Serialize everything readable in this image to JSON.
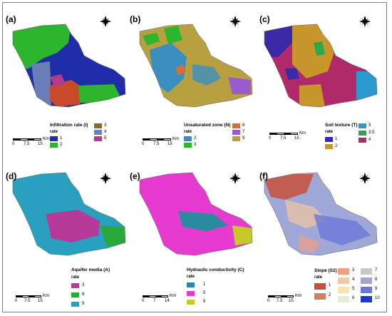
{
  "panels": {
    "a": {
      "label": "(a)",
      "legend_title": "Infiltration rate (I)",
      "legend_sub": "rate",
      "classes": [
        {
          "value": "1",
          "color": "#1f2ea8"
        },
        {
          "value": "2",
          "color": "#2db52d"
        },
        {
          "value": "3",
          "color": "#8a6a2a"
        },
        {
          "value": "4",
          "color": "#6a7fb8"
        },
        {
          "value": "5",
          "color": "#b53a8a"
        }
      ],
      "scale": {
        "unit": "Km",
        "ticks": [
          "0",
          "7.5",
          "15"
        ]
      }
    },
    "b": {
      "label": "(b)",
      "legend_title": "Unsaturated zone (N)",
      "legend_sub": "rate",
      "classes": [
        {
          "value": "2",
          "color": "#3a8fc0"
        },
        {
          "value": "3",
          "color": "#2db52d"
        },
        {
          "value": "6",
          "color": "#d0703a"
        },
        {
          "value": "7",
          "color": "#9a5ad0"
        },
        {
          "value": "9",
          "color": "#b8a040"
        }
      ],
      "scale": {
        "unit": "Km",
        "ticks": [
          "0",
          "7.5",
          "15"
        ]
      }
    },
    "c": {
      "label": "(c)",
      "legend_title": "Soil texture (T)",
      "legend_sub": "rate",
      "classes": [
        {
          "value": "1",
          "color": "#3a2aa8"
        },
        {
          "value": "2",
          "color": "#c8962a"
        },
        {
          "value": "3",
          "color": "#2a9ad0"
        },
        {
          "value": "3.5",
          "color": "#2aa84a"
        },
        {
          "value": "4",
          "color": "#b02a6a"
        }
      ],
      "scale": {
        "unit": "Km",
        "ticks": [
          "0",
          "7.5",
          "15"
        ]
      }
    },
    "d": {
      "label": "(d)",
      "legend_title": "Aquifer media (A)",
      "legend_sub": "rate",
      "classes": [
        {
          "value": "3",
          "color": "#b53a9a"
        },
        {
          "value": "8",
          "color": "#2aa83a"
        },
        {
          "value": "9",
          "color": "#2aa0c0"
        }
      ],
      "scale": {
        "unit": "Km",
        "ticks": [
          "0",
          "7.5",
          "15"
        ]
      }
    },
    "e": {
      "label": "(e)",
      "legend_title": "Hydraulic conductivity (C)",
      "legend_sub": "rate",
      "classes": [
        {
          "value": "1",
          "color": "#2a8aa0"
        },
        {
          "value": "5",
          "color": "#e63ad0"
        },
        {
          "value": "9",
          "color": "#c8c82a"
        }
      ],
      "scale": {
        "unit": "Km",
        "ticks": [
          "0",
          "7",
          "14"
        ]
      }
    },
    "f": {
      "label": "(f)",
      "legend_title": "Slope (S2)",
      "legend_sub": "rate",
      "classes": [
        {
          "value": "1",
          "color": "#c8503a"
        },
        {
          "value": "2",
          "color": "#d08060"
        },
        {
          "value": "3",
          "color": "#f0a080"
        },
        {
          "value": "4",
          "color": "#f5c8a0"
        },
        {
          "value": "5",
          "color": "#f5e6b0"
        },
        {
          "value": "6",
          "color": "#e8ecd0"
        },
        {
          "value": "7",
          "color": "#c8c8c8"
        },
        {
          "value": "8",
          "color": "#a0a8d8"
        },
        {
          "value": "9",
          "color": "#6a78d8"
        },
        {
          "value": "10",
          "color": "#1a3ad0"
        }
      ],
      "scale": {
        "unit": "Km",
        "ticks": [
          "0",
          "7.5",
          "15"
        ]
      }
    }
  }
}
